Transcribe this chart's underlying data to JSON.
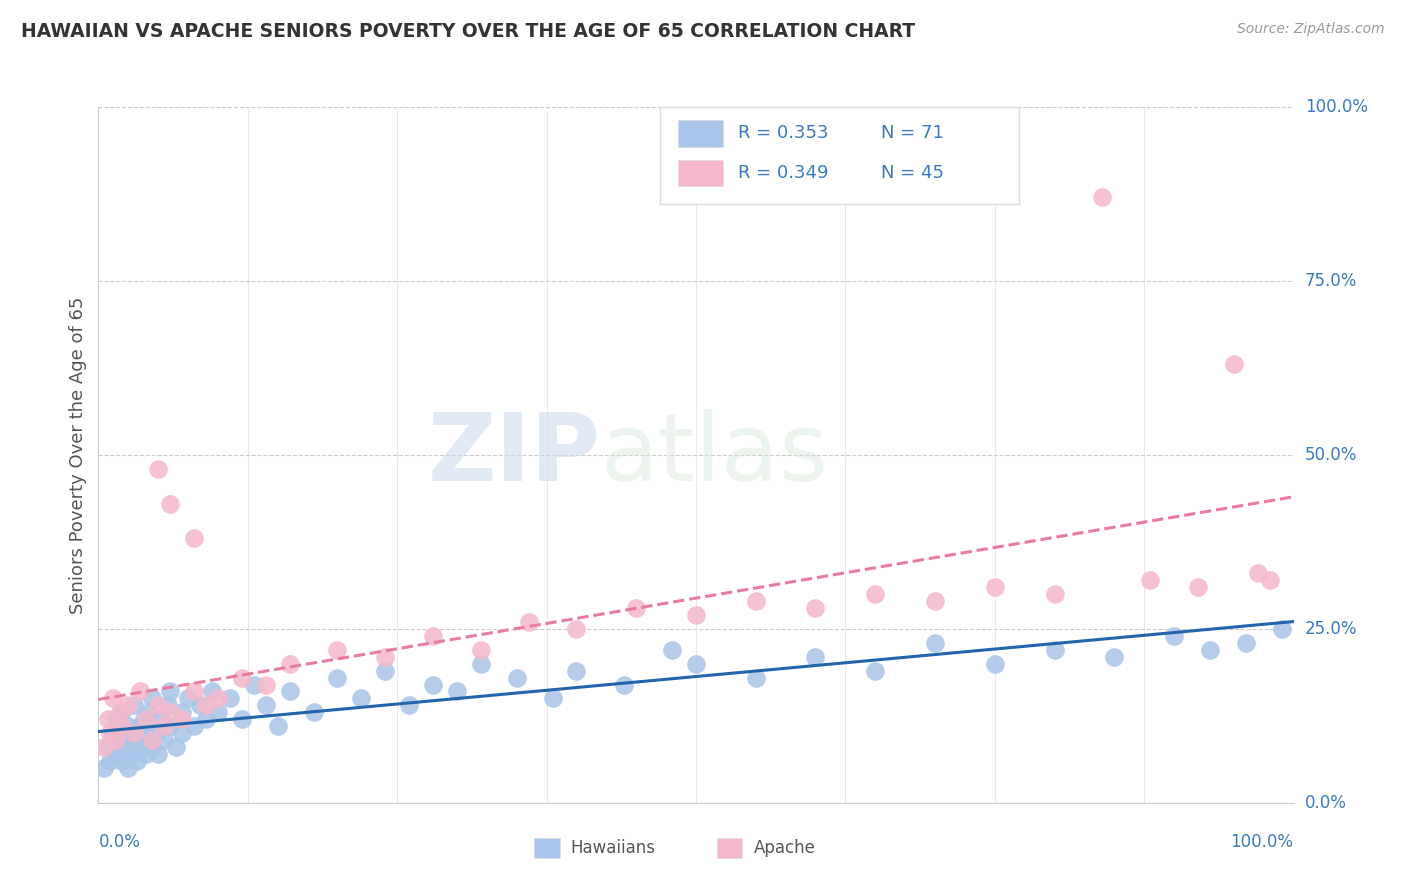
{
  "title": "HAWAIIAN VS APACHE SENIORS POVERTY OVER THE AGE OF 65 CORRELATION CHART",
  "source": "Source: ZipAtlas.com",
  "ylabel": "Seniors Poverty Over the Age of 65",
  "ytick_labels": [
    "0.0%",
    "25.0%",
    "50.0%",
    "75.0%",
    "100.0%"
  ],
  "ytick_values": [
    0.0,
    0.25,
    0.5,
    0.75,
    1.0
  ],
  "legend_R_hawaiian": "R = 0.353",
  "legend_N_hawaiian": "N = 71",
  "legend_R_apache": "R = 0.349",
  "legend_N_apache": "N = 45",
  "hawaiian_color": "#a8c4e8",
  "apache_color": "#f5b8cb",
  "hawaiian_line_color": "#2166ac",
  "apache_line_color": "#e87ca0",
  "label_color": "#3a7abf",
  "background_color": "#ffffff",
  "watermark_zip": "ZIP",
  "watermark_atlas": "atlas",
  "hawaiian_x": [
    0.005,
    0.008,
    0.01,
    0.012,
    0.015,
    0.015,
    0.018,
    0.02,
    0.02,
    0.022,
    0.025,
    0.025,
    0.028,
    0.03,
    0.03,
    0.032,
    0.035,
    0.035,
    0.038,
    0.04,
    0.04,
    0.042,
    0.045,
    0.045,
    0.048,
    0.05,
    0.052,
    0.055,
    0.058,
    0.06,
    0.06,
    0.065,
    0.07,
    0.07,
    0.075,
    0.08,
    0.085,
    0.09,
    0.095,
    0.1,
    0.11,
    0.12,
    0.13,
    0.14,
    0.15,
    0.16,
    0.18,
    0.2,
    0.22,
    0.24,
    0.26,
    0.28,
    0.3,
    0.32,
    0.35,
    0.38,
    0.4,
    0.44,
    0.48,
    0.5,
    0.55,
    0.6,
    0.65,
    0.7,
    0.75,
    0.8,
    0.85,
    0.9,
    0.93,
    0.96,
    0.99
  ],
  "hawaiian_y": [
    0.05,
    0.08,
    0.06,
    0.1,
    0.07,
    0.12,
    0.09,
    0.06,
    0.13,
    0.08,
    0.05,
    0.11,
    0.07,
    0.09,
    0.14,
    0.06,
    0.11,
    0.08,
    0.12,
    0.07,
    0.1,
    0.13,
    0.08,
    0.15,
    0.1,
    0.07,
    0.12,
    0.09,
    0.14,
    0.11,
    0.16,
    0.08,
    0.13,
    0.1,
    0.15,
    0.11,
    0.14,
    0.12,
    0.16,
    0.13,
    0.15,
    0.12,
    0.17,
    0.14,
    0.11,
    0.16,
    0.13,
    0.18,
    0.15,
    0.19,
    0.14,
    0.17,
    0.16,
    0.2,
    0.18,
    0.15,
    0.19,
    0.17,
    0.22,
    0.2,
    0.18,
    0.21,
    0.19,
    0.23,
    0.2,
    0.22,
    0.21,
    0.24,
    0.22,
    0.23,
    0.25
  ],
  "apache_x": [
    0.005,
    0.008,
    0.01,
    0.012,
    0.015,
    0.018,
    0.02,
    0.025,
    0.03,
    0.035,
    0.04,
    0.045,
    0.05,
    0.055,
    0.06,
    0.07,
    0.08,
    0.09,
    0.1,
    0.12,
    0.14,
    0.16,
    0.2,
    0.24,
    0.28,
    0.32,
    0.36,
    0.4,
    0.45,
    0.5,
    0.55,
    0.6,
    0.65,
    0.7,
    0.75,
    0.8,
    0.84,
    0.88,
    0.92,
    0.95,
    0.97,
    0.98,
    0.05,
    0.06,
    0.08
  ],
  "apache_y": [
    0.08,
    0.12,
    0.1,
    0.15,
    0.09,
    0.13,
    0.11,
    0.14,
    0.1,
    0.16,
    0.12,
    0.09,
    0.14,
    0.11,
    0.13,
    0.12,
    0.16,
    0.14,
    0.15,
    0.18,
    0.17,
    0.2,
    0.22,
    0.21,
    0.24,
    0.22,
    0.26,
    0.25,
    0.28,
    0.27,
    0.29,
    0.28,
    0.3,
    0.29,
    0.31,
    0.3,
    0.87,
    0.32,
    0.31,
    0.63,
    0.33,
    0.32,
    0.48,
    0.43,
    0.38
  ]
}
